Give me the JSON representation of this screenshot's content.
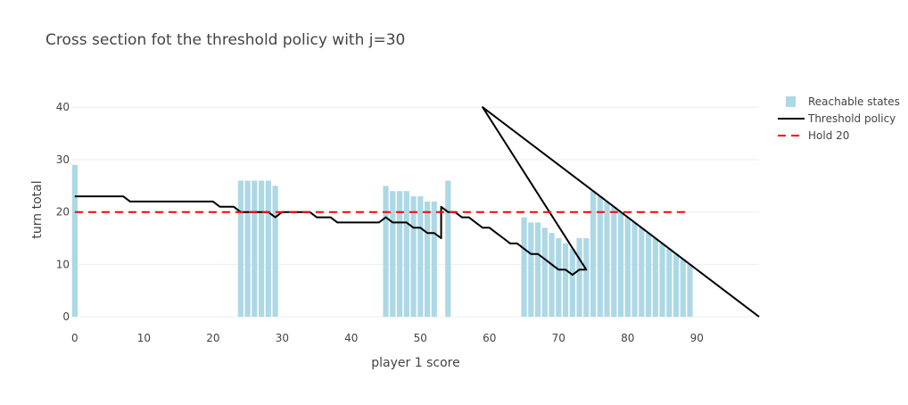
{
  "chart_data": {
    "type": "bar",
    "title": "Cross section fot the threshold policy with j=30",
    "xlabel": "player 1 score",
    "ylabel": "turn total",
    "xlim": [
      -0.5,
      99
    ],
    "ylim": [
      -1,
      46
    ],
    "xticks": [
      0,
      10,
      20,
      30,
      40,
      50,
      60,
      70,
      80,
      90
    ],
    "yticks": [
      0,
      10,
      20,
      30,
      40
    ],
    "grid": true,
    "legend_position": "top-right",
    "colors": {
      "bars": "#add8e6",
      "threshold": "#000000",
      "hold": "#ff0000",
      "grid": "#eeeeee",
      "tick_text": "#444444",
      "title_text": "#444444"
    },
    "series": [
      {
        "name": "Reachable states",
        "kind": "bar",
        "x": [
          0,
          24,
          25,
          26,
          27,
          28,
          29,
          45,
          46,
          47,
          48,
          49,
          50,
          51,
          52,
          54,
          65,
          66,
          67,
          68,
          69,
          70,
          71,
          72,
          73,
          74,
          75,
          76,
          77,
          78,
          79,
          80,
          81,
          82,
          83,
          84,
          85,
          86,
          87,
          88,
          89
        ],
        "y": [
          29,
          26,
          26,
          26,
          26,
          26,
          25,
          25,
          24,
          24,
          24,
          23,
          23,
          22,
          22,
          26,
          19,
          18,
          18,
          17,
          16,
          15,
          14,
          13,
          15,
          15,
          24,
          23,
          22,
          21,
          20,
          19,
          18,
          17,
          16,
          15,
          14,
          13,
          12,
          11,
          10
        ]
      },
      {
        "name": "Threshold policy",
        "kind": "line",
        "x": [
          0,
          7,
          8,
          20,
          21,
          23,
          24,
          28,
          29,
          30,
          34,
          35,
          37,
          38,
          40,
          44,
          45,
          46,
          48,
          49,
          50,
          51,
          52,
          53,
          53,
          54,
          55,
          56,
          57,
          58,
          59,
          60,
          61,
          62,
          63,
          64,
          65,
          66,
          67,
          68,
          69,
          70,
          71,
          72,
          73,
          74,
          59,
          99
        ],
        "y": [
          23,
          23,
          22,
          22,
          21,
          21,
          20,
          20,
          19,
          20,
          20,
          19,
          19,
          18,
          18,
          18,
          19,
          18,
          18,
          17,
          17,
          16,
          16,
          15,
          21,
          20,
          20,
          19,
          19,
          18,
          17,
          17,
          16,
          15,
          14,
          14,
          13,
          12,
          12,
          11,
          10,
          9,
          9,
          8,
          9,
          9,
          40,
          0
        ]
      },
      {
        "name": "Hold 20",
        "kind": "line",
        "dash": "dash",
        "x": [
          0,
          89
        ],
        "y": [
          20,
          20
        ]
      }
    ]
  }
}
